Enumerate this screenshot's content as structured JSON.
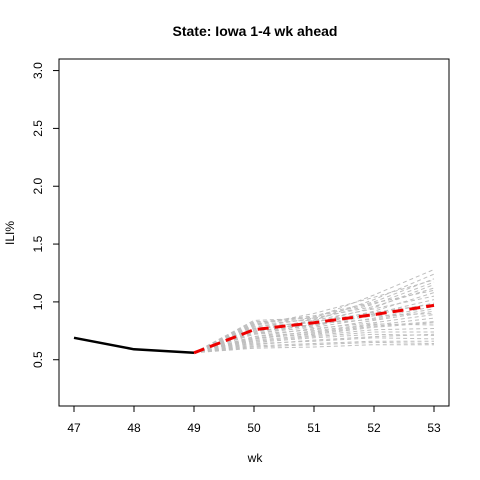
{
  "chart_data": {
    "type": "line",
    "title": "State: Iowa 1-4 wk ahead",
    "xlabel": "wk",
    "ylabel": "ILI%",
    "xlim": [
      46.75,
      53.25
    ],
    "ylim": [
      0.1,
      3.1
    ],
    "x_ticks": [
      "47",
      "48",
      "49",
      "50",
      "51",
      "52",
      "53"
    ],
    "y_ticks": [
      "0.5",
      "1.0",
      "1.5",
      "2.0",
      "2.5",
      "3.0"
    ],
    "grid": false,
    "colors": {
      "observed": "#000000",
      "forecast_mean": "#ee0000",
      "forecast_samples": "#bebebe"
    },
    "series": [
      {
        "role": "observed",
        "x": [
          47,
          48,
          49
        ],
        "y": [
          0.69,
          0.59,
          0.56
        ]
      },
      {
        "role": "forecast_mean",
        "x": [
          49,
          50,
          51,
          52,
          53
        ],
        "y": [
          0.56,
          0.76,
          0.82,
          0.89,
          0.97
        ]
      }
    ],
    "sample_trajectories": [
      [
        0.56,
        0.84,
        0.86,
        1.06,
        1.28
      ],
      [
        0.56,
        0.83,
        0.84,
        1.02,
        1.24
      ],
      [
        0.56,
        0.82,
        0.88,
        1.0,
        1.2
      ],
      [
        0.56,
        0.8,
        0.85,
        0.98,
        1.17
      ],
      [
        0.56,
        0.79,
        0.82,
        0.95,
        1.15
      ],
      [
        0.56,
        0.78,
        0.86,
        0.96,
        1.12
      ],
      [
        0.56,
        0.77,
        0.8,
        0.92,
        1.08
      ],
      [
        0.56,
        0.76,
        0.84,
        0.94,
        1.05
      ],
      [
        0.56,
        0.75,
        0.79,
        0.9,
        1.02
      ],
      [
        0.56,
        0.74,
        0.83,
        0.89,
        0.99
      ],
      [
        0.56,
        0.73,
        0.78,
        0.86,
        0.96
      ],
      [
        0.56,
        0.72,
        0.81,
        0.85,
        0.94
      ],
      [
        0.56,
        0.72,
        0.76,
        0.84,
        0.92
      ],
      [
        0.56,
        0.7,
        0.77,
        0.82,
        0.89
      ],
      [
        0.56,
        0.7,
        0.74,
        0.8,
        0.86
      ],
      [
        0.56,
        0.68,
        0.73,
        0.79,
        0.83
      ],
      [
        0.56,
        0.68,
        0.75,
        0.81,
        0.8
      ],
      [
        0.56,
        0.66,
        0.7,
        0.74,
        0.74
      ],
      [
        0.56,
        0.65,
        0.69,
        0.72,
        0.71
      ],
      [
        0.56,
        0.64,
        0.66,
        0.69,
        0.68
      ],
      [
        0.56,
        0.62,
        0.64,
        0.66,
        0.66
      ],
      [
        0.56,
        0.61,
        0.63,
        0.65,
        0.64
      ],
      [
        0.56,
        0.6,
        0.61,
        0.63,
        0.63
      ],
      [
        0.56,
        0.8,
        0.9,
        1.04,
        1.19
      ],
      [
        0.56,
        0.81,
        0.87,
        0.99,
        1.1
      ],
      [
        0.56,
        0.77,
        0.83,
        0.91,
        0.98
      ],
      [
        0.56,
        0.74,
        0.8,
        0.88,
        0.9
      ],
      [
        0.56,
        0.69,
        0.72,
        0.78,
        0.82
      ],
      [
        0.56,
        0.67,
        0.71,
        0.76,
        0.77
      ],
      [
        0.56,
        0.63,
        0.67,
        0.7,
        0.72
      ]
    ]
  }
}
